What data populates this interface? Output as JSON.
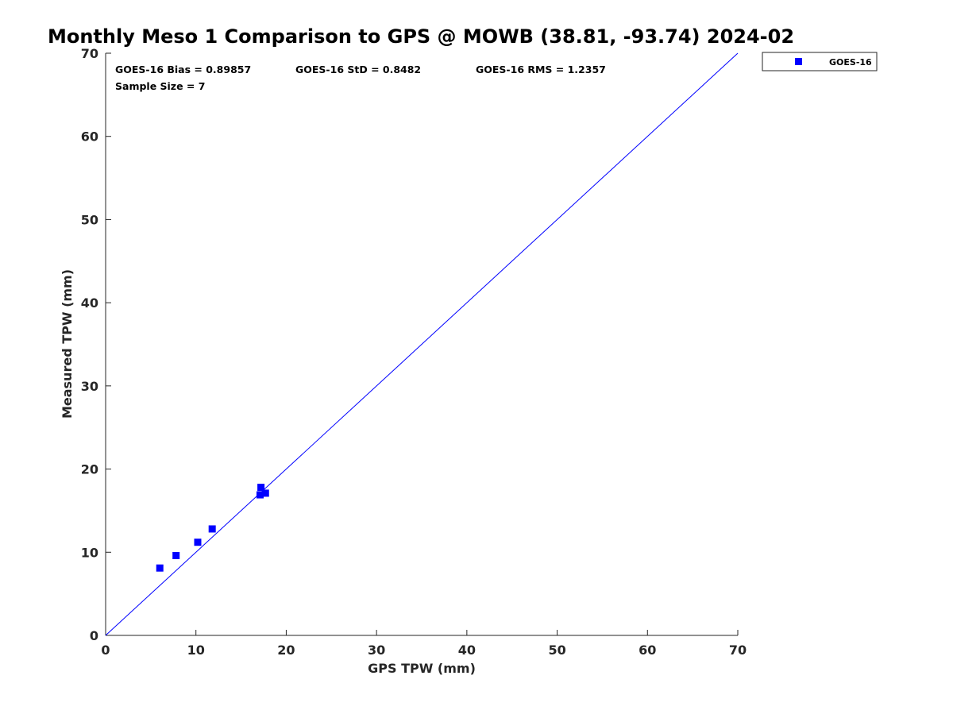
{
  "chart_data": {
    "type": "scatter",
    "title": "Monthly Meso 1 Comparison to GPS @ MOWB (38.81, -93.74) 2024-02",
    "xlabel": "GPS TPW (mm)",
    "ylabel": "Measured TPW (mm)",
    "xlim": [
      0,
      70
    ],
    "ylim": [
      0,
      70
    ],
    "xticks": [
      0,
      10,
      20,
      30,
      40,
      50,
      60,
      70
    ],
    "yticks": [
      0,
      10,
      20,
      30,
      40,
      50,
      60,
      70
    ],
    "grid": false,
    "legend_position": "top-right outside",
    "reference_line": {
      "from": [
        0,
        0
      ],
      "to": [
        70,
        70
      ],
      "color": "#0000ff"
    },
    "series": [
      {
        "name": "GOES-16",
        "marker": "square",
        "color": "#0000ff",
        "points": [
          {
            "x": 6.0,
            "y": 8.1
          },
          {
            "x": 7.8,
            "y": 9.6
          },
          {
            "x": 10.2,
            "y": 11.2
          },
          {
            "x": 11.8,
            "y": 12.8
          },
          {
            "x": 17.1,
            "y": 16.9
          },
          {
            "x": 17.2,
            "y": 17.8
          },
          {
            "x": 17.7,
            "y": 17.1
          }
        ]
      }
    ],
    "stats": {
      "bias": "GOES-16 Bias = 0.89857",
      "std": "GOES-16 StD = 0.8482",
      "rms": "GOES-16 RMS = 1.2357",
      "sample_size": "Sample Size = 7"
    }
  }
}
